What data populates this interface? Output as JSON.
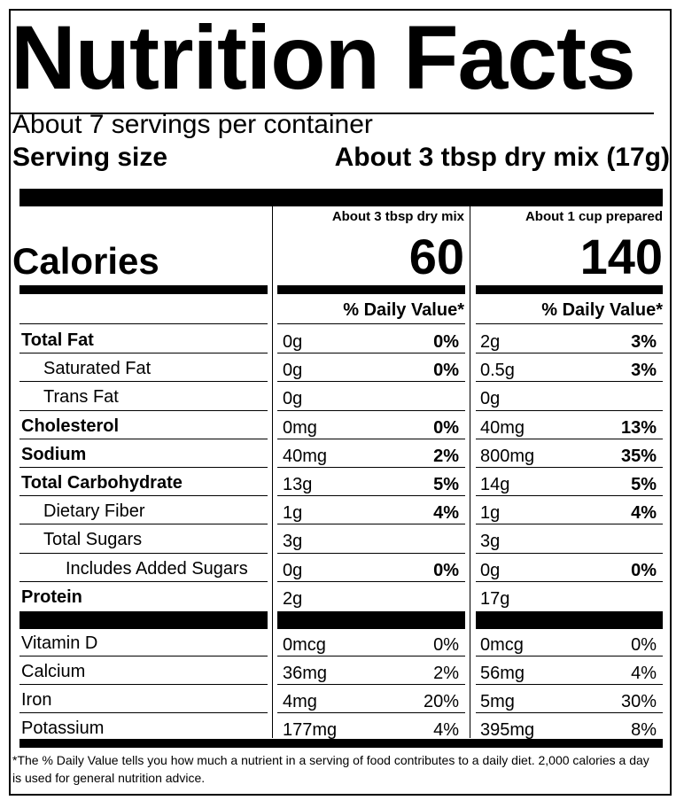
{
  "title": "Nutrition Facts",
  "servings_per_container": "About 7 servings per container",
  "serving_size_label": "Serving size",
  "serving_size_value": "About 3 tbsp dry mix (17g)",
  "columns": [
    {
      "header": "About 3 tbsp dry mix",
      "calories": "60",
      "dv_header": "% Daily Value*"
    },
    {
      "header": "About 1 cup prepared",
      "calories": "140",
      "dv_header": "% Daily Value*"
    }
  ],
  "calories_label": "Calories",
  "nutrients": [
    {
      "name": "Total Fat",
      "bold": true,
      "indent": 0,
      "c1_amount": "0g",
      "c1_dv": "0%",
      "c2_amount": "2g",
      "c2_dv": "3%"
    },
    {
      "name": "Saturated Fat",
      "bold": false,
      "indent": 1,
      "c1_amount": "0g",
      "c1_dv": "0%",
      "c2_amount": "0.5g",
      "c2_dv": "3%"
    },
    {
      "name": "Trans Fat",
      "bold": false,
      "indent": 1,
      "c1_amount": "0g",
      "c1_dv": "",
      "c2_amount": "0g",
      "c2_dv": ""
    },
    {
      "name": "Cholesterol",
      "bold": true,
      "indent": 0,
      "c1_amount": "0mg",
      "c1_dv": "0%",
      "c2_amount": "40mg",
      "c2_dv": "13%"
    },
    {
      "name": "Sodium",
      "bold": true,
      "indent": 0,
      "c1_amount": "40mg",
      "c1_dv": "2%",
      "c2_amount": "800mg",
      "c2_dv": "35%"
    },
    {
      "name": "Total Carbohydrate",
      "bold": true,
      "indent": 0,
      "c1_amount": "13g",
      "c1_dv": "5%",
      "c2_amount": "14g",
      "c2_dv": "5%"
    },
    {
      "name": "Dietary Fiber",
      "bold": false,
      "indent": 1,
      "c1_amount": "1g",
      "c1_dv": "4%",
      "c2_amount": "1g",
      "c2_dv": "4%"
    },
    {
      "name": "Total Sugars",
      "bold": false,
      "indent": 1,
      "c1_amount": "3g",
      "c1_dv": "",
      "c2_amount": "3g",
      "c2_dv": ""
    },
    {
      "name": "Includes Added Sugars",
      "bold": false,
      "indent": 2,
      "c1_amount": "0g",
      "c1_dv": "0%",
      "c2_amount": "0g",
      "c2_dv": "0%"
    },
    {
      "name": "Protein",
      "bold": true,
      "indent": 0,
      "c1_amount": "2g",
      "c1_dv": "",
      "c2_amount": "17g",
      "c2_dv": ""
    }
  ],
  "vitamins": [
    {
      "name": "Vitamin D",
      "c1_amount": "0mcg",
      "c1_dv": "0%",
      "c2_amount": "0mcg",
      "c2_dv": "0%"
    },
    {
      "name": "Calcium",
      "c1_amount": "36mg",
      "c1_dv": "2%",
      "c2_amount": "56mg",
      "c2_dv": "4%"
    },
    {
      "name": "Iron",
      "c1_amount": "4mg",
      "c1_dv": "20%",
      "c2_amount": "5mg",
      "c2_dv": "30%"
    },
    {
      "name": "Potassium",
      "c1_amount": "177mg",
      "c1_dv": "4%",
      "c2_amount": "395mg",
      "c2_dv": "8%"
    }
  ],
  "footnote": "*The % Daily Value tells you how much a nutrient in a serving of food contributes to a daily diet. 2,000 calories a day is used for general nutrition advice."
}
